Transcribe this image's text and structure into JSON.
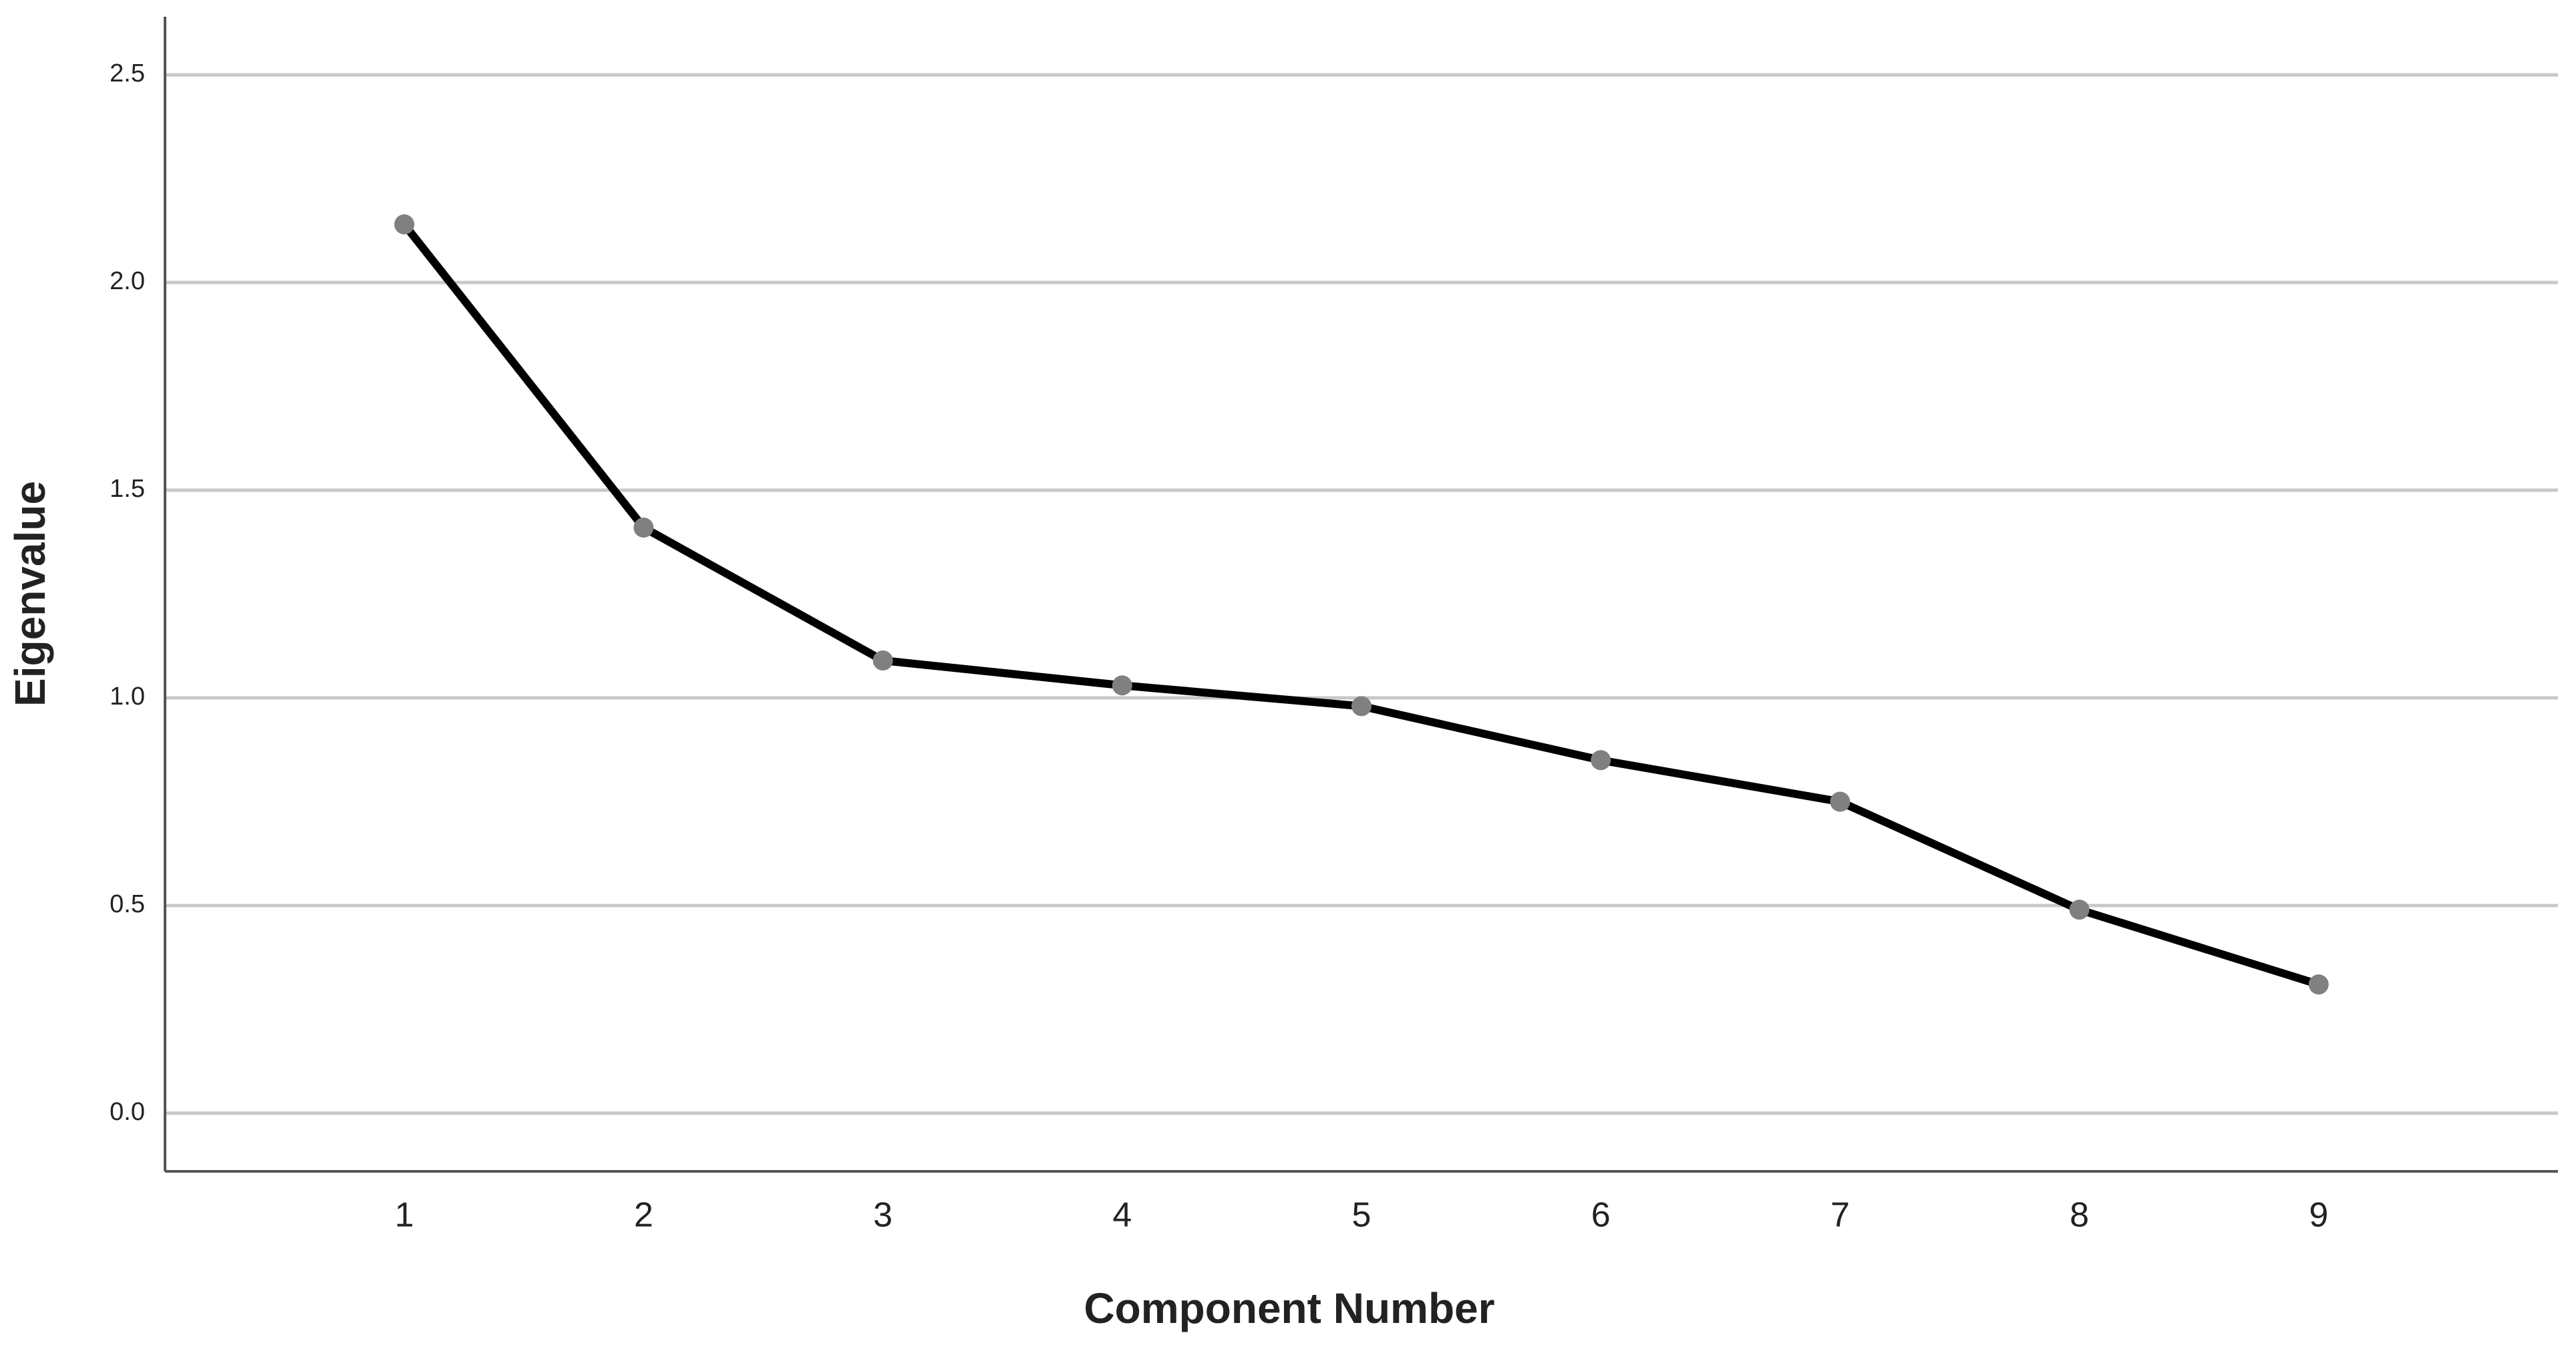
{
  "chart_data": {
    "type": "line",
    "x_label": "Component Number",
    "y_label": "Eigenvalue",
    "x": [
      1,
      2,
      3,
      4,
      5,
      6,
      7,
      8,
      9
    ],
    "values": [
      2.14,
      1.41,
      1.09,
      1.03,
      0.98,
      0.85,
      0.75,
      0.49,
      0.31
    ],
    "color": "#000000",
    "marker_color": "#808080",
    "xlim": [
      0,
      10
    ],
    "xticks": [
      1,
      2,
      3,
      4,
      5,
      6,
      7,
      8,
      9
    ],
    "ylim": [
      -0.14,
      2.64
    ],
    "yticks": [
      {
        "value": 0,
        "label": "0.0"
      },
      0.5,
      {
        "value": 1,
        "label": "1.0"
      },
      1.5,
      {
        "value": 2,
        "label": "2.0"
      },
      2.5
    ],
    "grid": true
  }
}
